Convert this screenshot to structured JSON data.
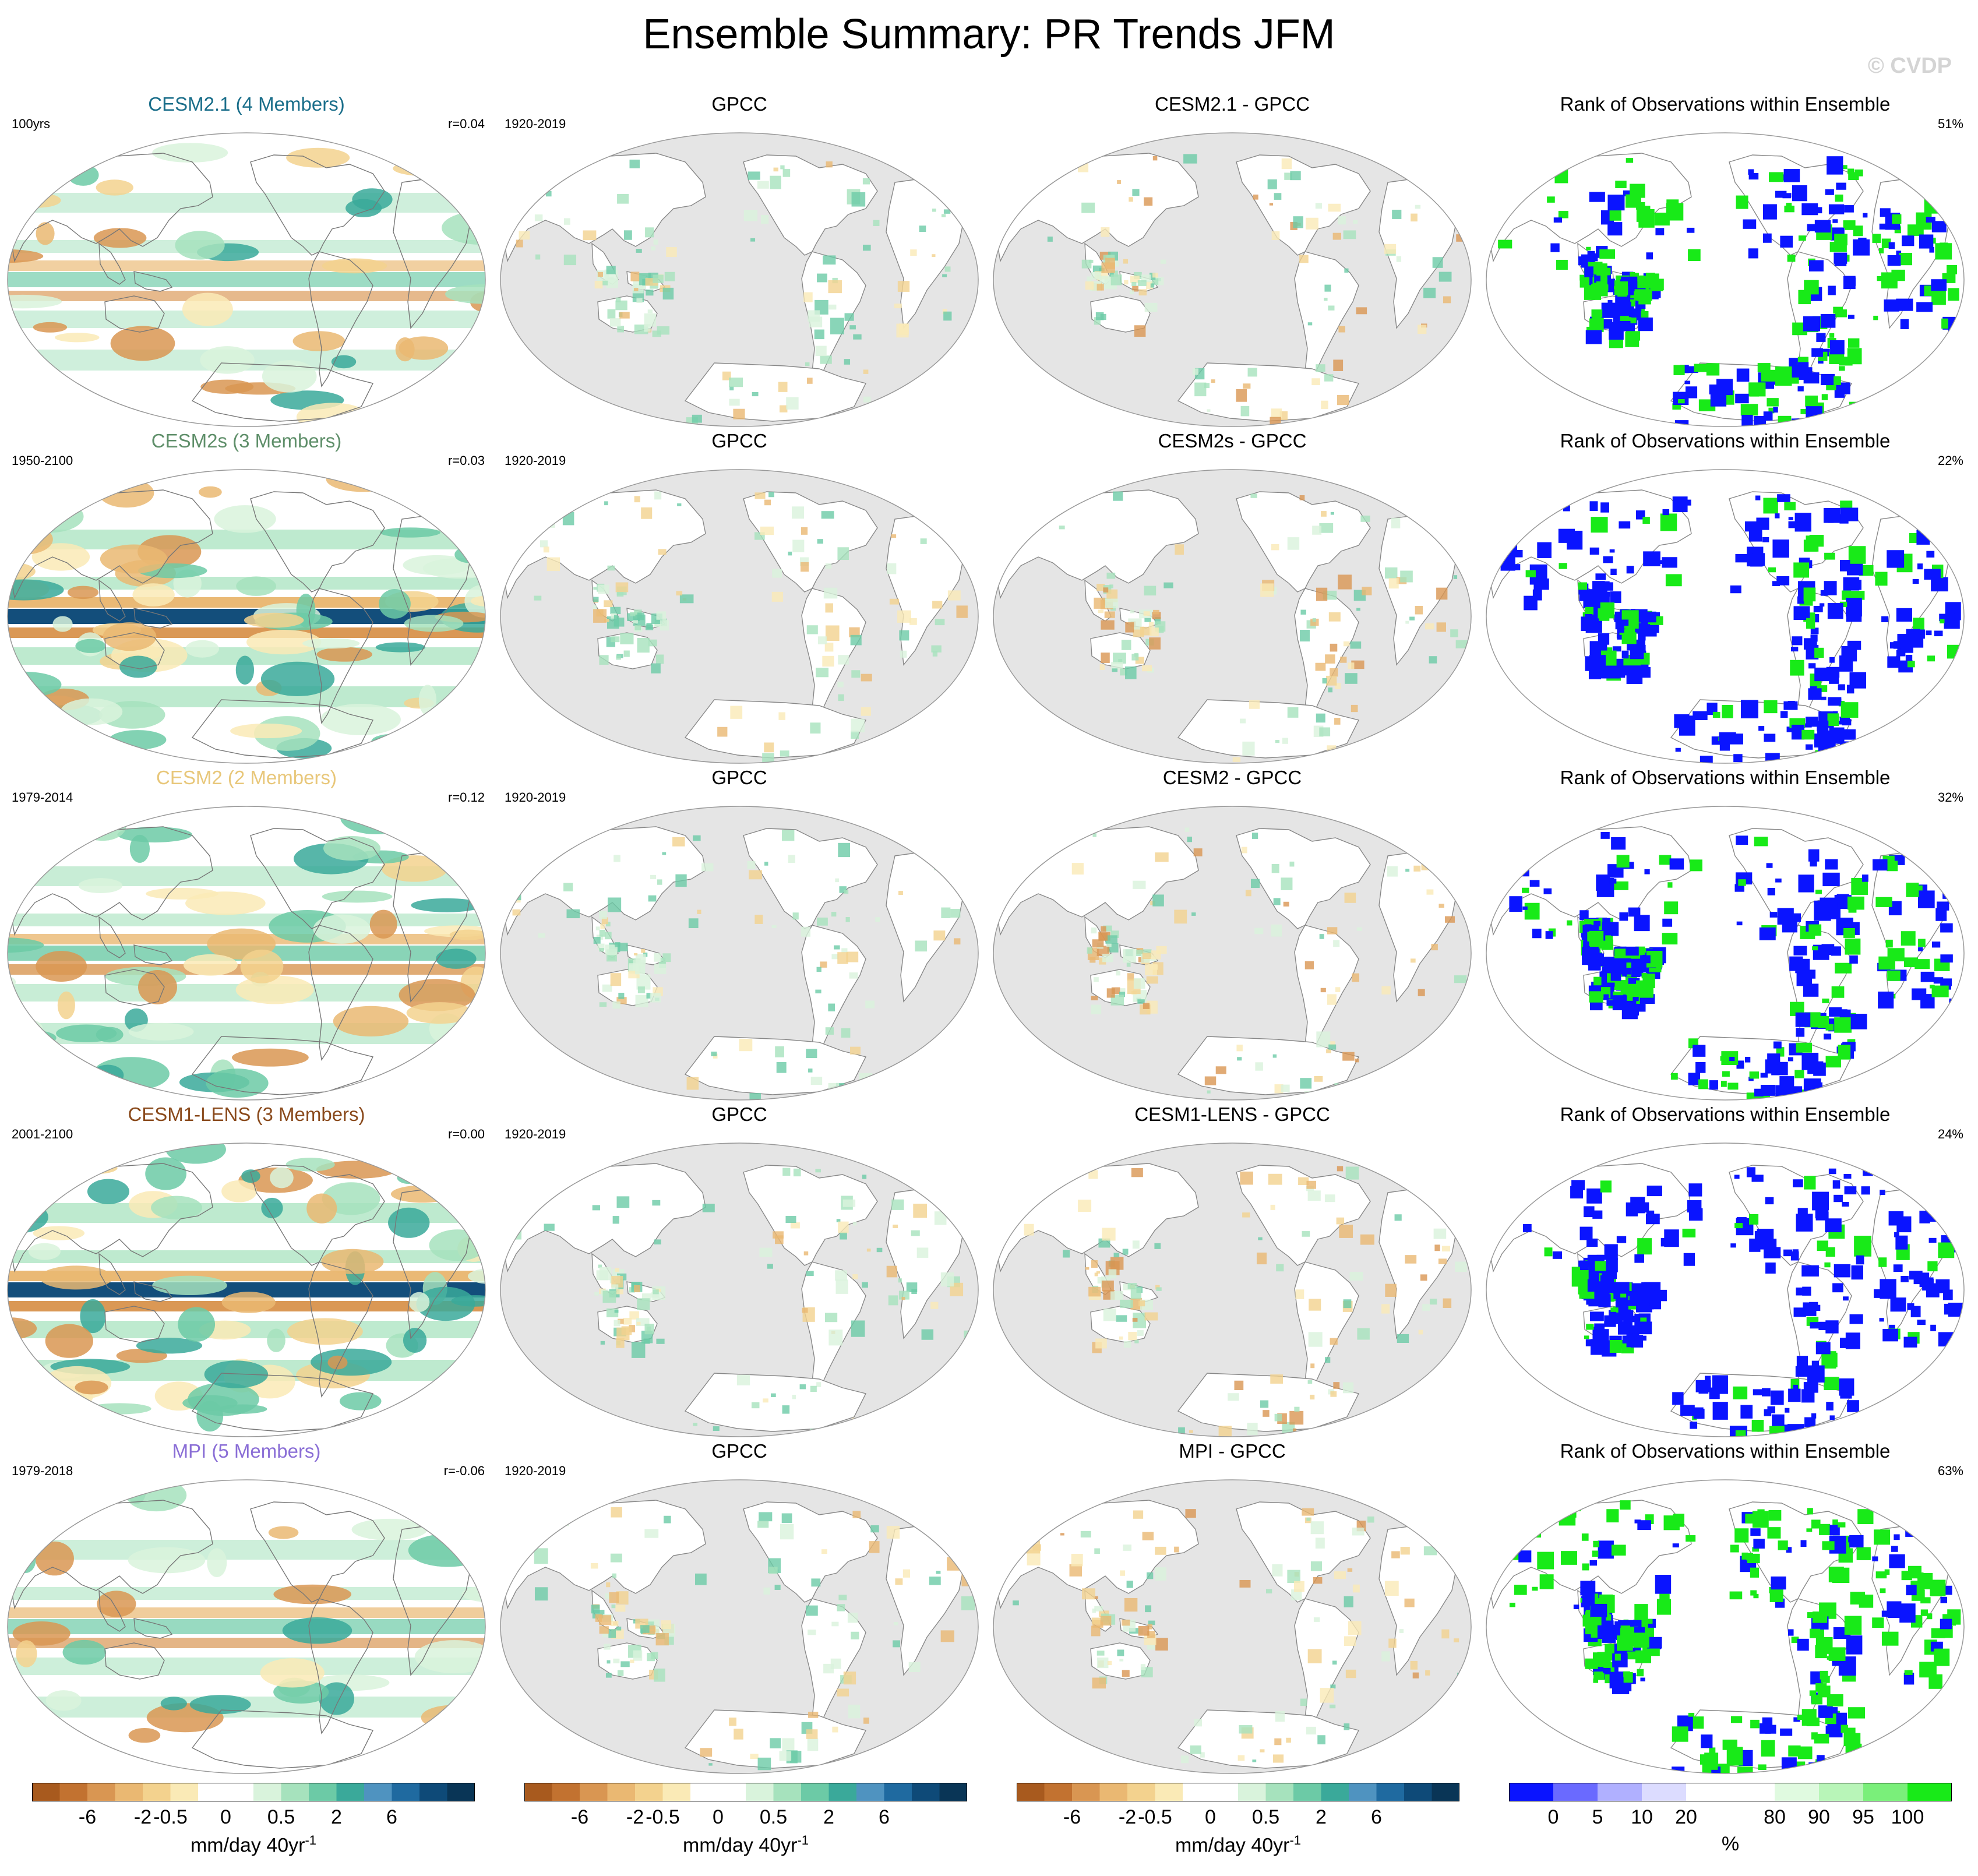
{
  "title": "Ensemble Summary: PR Trends JFM",
  "copyright": "© CVDP",
  "chart_data": {
    "type": "heatmap",
    "title": "Ensemble Summary: PR Trends JFM",
    "rows": [
      {
        "model_title": "CESM2.1 (4 Members)",
        "model_color": "#1a6e8a",
        "period": "100yrs",
        "r": "r=0.04",
        "obs_title": "GPCC",
        "obs_period": "1920-2019",
        "diff_title": "CESM2.1 - GPCC",
        "rank_title": "Rank of Observations within Ensemble",
        "rank_pct": "51%",
        "model_intensity": 0.9,
        "rank_blue_fraction": 0.49
      },
      {
        "model_title": "CESM2s (3 Members)",
        "model_color": "#5f8f6a",
        "period": "1950-2100",
        "r": "r=0.03",
        "obs_title": "GPCC",
        "obs_period": "1920-2019",
        "diff_title": "CESM2s - GPCC",
        "rank_title": "Rank of Observations within Ensemble",
        "rank_pct": "22%",
        "model_intensity": 1.8,
        "rank_blue_fraction": 0.78
      },
      {
        "model_title": "CESM2 (2 Members)",
        "model_color": "#e8c77a",
        "period": "1979-2014",
        "r": "r=0.12",
        "obs_title": "GPCC",
        "obs_period": "1920-2019",
        "diff_title": "CESM2 - GPCC",
        "rank_title": "Rank of Observations within Ensemble",
        "rank_pct": "32%",
        "model_intensity": 1.3,
        "rank_blue_fraction": 0.62
      },
      {
        "model_title": "CESM1-LENS (3 Members)",
        "model_color": "#8a4a1c",
        "period": "2001-2100",
        "r": "r=0.00",
        "obs_title": "GPCC",
        "obs_period": "1920-2019",
        "diff_title": "CESM1-LENS - GPCC",
        "rank_title": "Rank of Observations within Ensemble",
        "rank_pct": "24%",
        "model_intensity": 1.8,
        "rank_blue_fraction": 0.76
      },
      {
        "model_title": "MPI (5 Members)",
        "model_color": "#8a6ed6",
        "period": "1979-2018",
        "r": "r=-0.06",
        "obs_title": "GPCC",
        "obs_period": "1920-2019",
        "diff_title": "MPI - GPCC",
        "rank_title": "Rank of Observations within Ensemble",
        "rank_pct": "63%",
        "model_intensity": 1.0,
        "rank_blue_fraction": 0.4
      }
    ],
    "pr_colorbar": {
      "colors": [
        "#a85a1e",
        "#c27230",
        "#d99652",
        "#eab872",
        "#f3d28e",
        "#faeab6",
        "#ffffff",
        "#ffffff",
        "#d9f3dc",
        "#a6e2bd",
        "#6ccaa6",
        "#3aa99a",
        "#4f93c0",
        "#1f6aa0",
        "#0e4a78",
        "#093556"
      ],
      "ticks": [
        "-6",
        "-2",
        "-0.5",
        "0",
        "0.5",
        "2",
        "6"
      ],
      "tick_boundaries": [
        2,
        4,
        5,
        7,
        9,
        11,
        13
      ],
      "label": "mm/day 40yr",
      "label_sup": "-1"
    },
    "rank_colorbar": {
      "colors": [
        "#0a14ff",
        "#6a6aff",
        "#b0b0ff",
        "#dcdcff",
        "#ffffff",
        "#ffffff",
        "#e0fae0",
        "#b8f5b8",
        "#7aef7a",
        "#18ea18"
      ],
      "ticks": [
        "0",
        "5",
        "10",
        "20",
        "80",
        "90",
        "95",
        "100"
      ],
      "tick_boundaries": [
        1,
        2,
        3,
        4,
        6,
        7,
        8,
        9
      ],
      "label": "%"
    }
  }
}
